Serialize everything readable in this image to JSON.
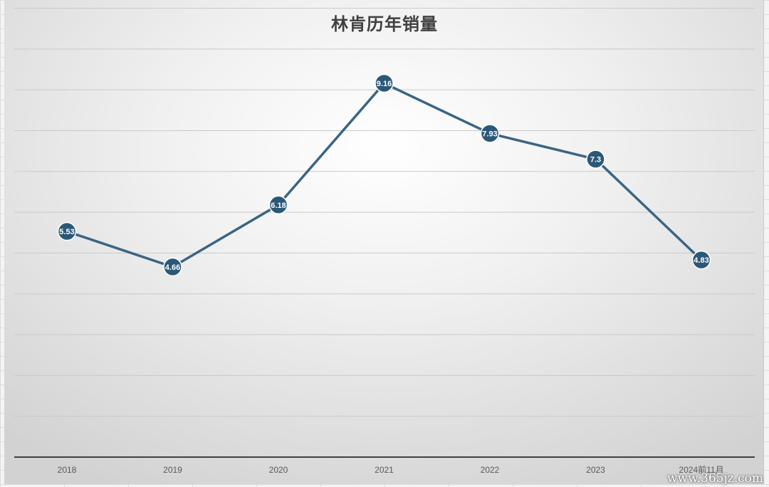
{
  "chart_data": {
    "type": "line",
    "title": "林肯历年销量",
    "categories": [
      "2018",
      "2019",
      "2020",
      "2021",
      "2022",
      "2023",
      "2024前11月"
    ],
    "values": [
      5.53,
      4.66,
      6.18,
      9.16,
      7.93,
      7.3,
      4.83
    ],
    "data_labels": [
      "5.53",
      "4.66",
      "6.18",
      "9.16",
      "7.93",
      "7.3",
      "4.83"
    ],
    "ylim": [
      0,
      11
    ],
    "y_gridline_step": 1,
    "grid": true,
    "legend": "none",
    "line_color": "#3a6583",
    "marker_color": "#2b5877",
    "xlabel": "",
    "ylabel": ""
  },
  "watermark": "www.365jz.com"
}
